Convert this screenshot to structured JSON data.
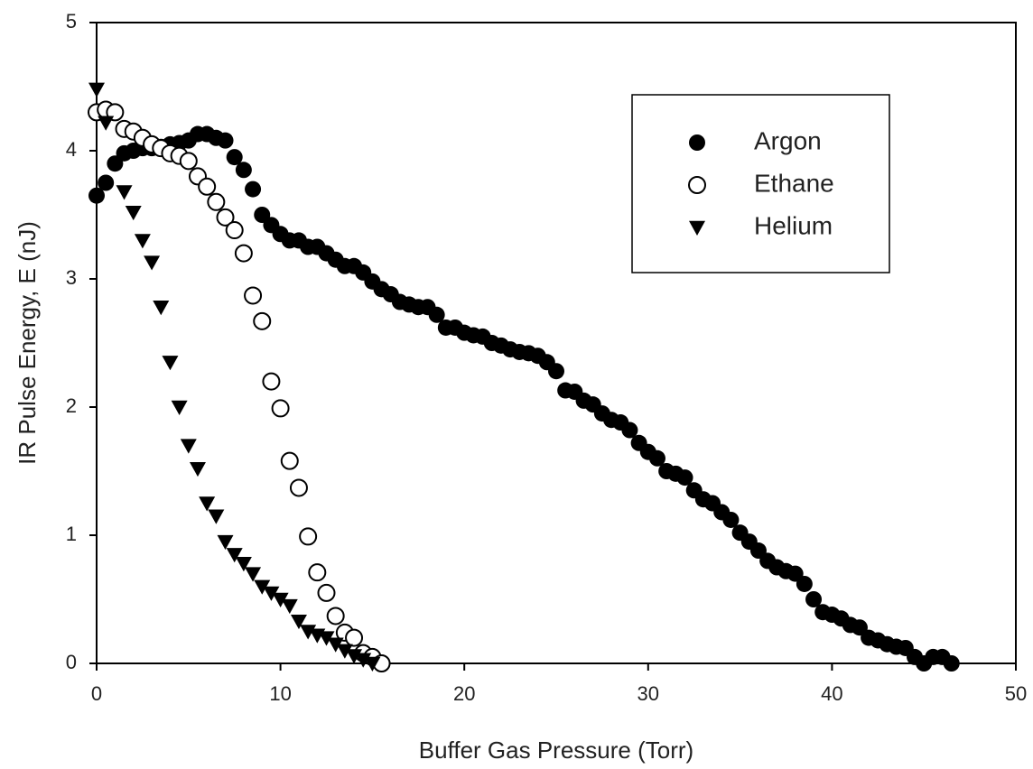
{
  "chart_data": {
    "type": "scatter",
    "xlabel": "Buffer Gas Pressure (Torr)",
    "ylabel": "IR Pulse Energy, E (nJ)",
    "xlim": [
      0,
      50
    ],
    "xticks": [
      0,
      10,
      20,
      30,
      40,
      50
    ],
    "ylim": [
      0,
      5
    ],
    "yticks": [
      0,
      1,
      2,
      3,
      4,
      5
    ],
    "legend": "upper right",
    "series": [
      {
        "name": "Argon",
        "color": "#000000",
        "marker": "circle",
        "x": [
          0,
          0.5,
          1,
          1.5,
          2,
          2.5,
          3,
          3.5,
          4,
          4.5,
          5,
          5.5,
          6,
          6.5,
          7,
          7.5,
          8,
          8.5,
          9,
          9.5,
          10,
          10.5,
          11,
          11.5,
          12,
          12.5,
          13,
          13.5,
          14,
          14.5,
          15,
          15.5,
          16,
          16.5,
          17,
          17.5,
          18,
          18.5,
          19,
          19.5,
          20,
          20.5,
          21,
          21.5,
          22,
          22.5,
          23,
          23.5,
          24,
          24.5,
          25,
          25.5,
          26,
          26.5,
          27,
          27.5,
          28,
          28.5,
          29,
          29.5,
          30,
          30.5,
          31,
          31.5,
          32,
          32.5,
          33,
          33.5,
          34,
          34.5,
          35,
          35.5,
          36,
          36.5,
          37,
          37.5,
          38,
          38.5,
          39,
          39.5,
          40,
          40.5,
          41,
          41.5,
          42,
          42.5,
          43,
          43.5,
          44,
          44.5,
          45,
          45.5,
          46,
          46.5
        ],
        "values": [
          3.65,
          3.75,
          3.9,
          3.98,
          4.0,
          4.02,
          4.02,
          4.03,
          4.05,
          4.06,
          4.08,
          4.13,
          4.13,
          4.1,
          4.08,
          3.95,
          3.85,
          3.7,
          3.5,
          3.42,
          3.35,
          3.3,
          3.3,
          3.25,
          3.25,
          3.2,
          3.15,
          3.1,
          3.1,
          3.05,
          2.98,
          2.92,
          2.88,
          2.82,
          2.8,
          2.78,
          2.78,
          2.72,
          2.62,
          2.62,
          2.58,
          2.56,
          2.55,
          2.5,
          2.48,
          2.45,
          2.43,
          2.42,
          2.4,
          2.35,
          2.28,
          2.13,
          2.12,
          2.05,
          2.02,
          1.95,
          1.9,
          1.88,
          1.82,
          1.72,
          1.65,
          1.6,
          1.5,
          1.48,
          1.45,
          1.35,
          1.28,
          1.25,
          1.18,
          1.12,
          1.02,
          0.95,
          0.88,
          0.8,
          0.75,
          0.72,
          0.7,
          0.62,
          0.5,
          0.4,
          0.38,
          0.35,
          0.3,
          0.28,
          0.2,
          0.18,
          0.15,
          0.13,
          0.12,
          0.05,
          0.0,
          0.05,
          0.05,
          0.0
        ]
      },
      {
        "name": "Ethane",
        "color": "#000000",
        "marker": "circle-open",
        "x": [
          0,
          0.5,
          1,
          1.5,
          2,
          2.5,
          3,
          3.5,
          4,
          4.5,
          5,
          5.5,
          6,
          6.5,
          7,
          7.5,
          8,
          8.5,
          9,
          9.5,
          10,
          10.5,
          11,
          11.5,
          12,
          12.5,
          13,
          13.5,
          14,
          14.5,
          15,
          15.5
        ],
        "values": [
          4.3,
          4.32,
          4.3,
          4.17,
          4.15,
          4.1,
          4.05,
          4.02,
          3.98,
          3.96,
          3.92,
          3.8,
          3.72,
          3.6,
          3.48,
          3.38,
          3.2,
          2.87,
          2.67,
          2.2,
          1.99,
          1.58,
          1.37,
          0.99,
          0.71,
          0.55,
          0.37,
          0.24,
          0.2,
          0.08,
          0.05,
          0.0
        ]
      },
      {
        "name": "Helium",
        "color": "#000000",
        "marker": "triangle-down",
        "x": [
          0,
          0.5,
          1.5,
          2,
          2.5,
          3,
          3.5,
          4,
          4.5,
          5,
          5.5,
          6,
          6.5,
          7,
          7.5,
          8,
          8.5,
          9,
          9.5,
          10,
          10.5,
          11,
          11.5,
          12,
          12.5,
          13,
          13.5,
          14,
          14.5,
          15
        ],
        "values": [
          4.48,
          4.22,
          3.68,
          3.52,
          3.3,
          3.13,
          2.78,
          2.35,
          2.0,
          1.7,
          1.52,
          1.25,
          1.15,
          0.95,
          0.85,
          0.78,
          0.7,
          0.6,
          0.55,
          0.5,
          0.45,
          0.33,
          0.25,
          0.22,
          0.2,
          0.15,
          0.1,
          0.06,
          0.03,
          0.0
        ]
      }
    ]
  }
}
